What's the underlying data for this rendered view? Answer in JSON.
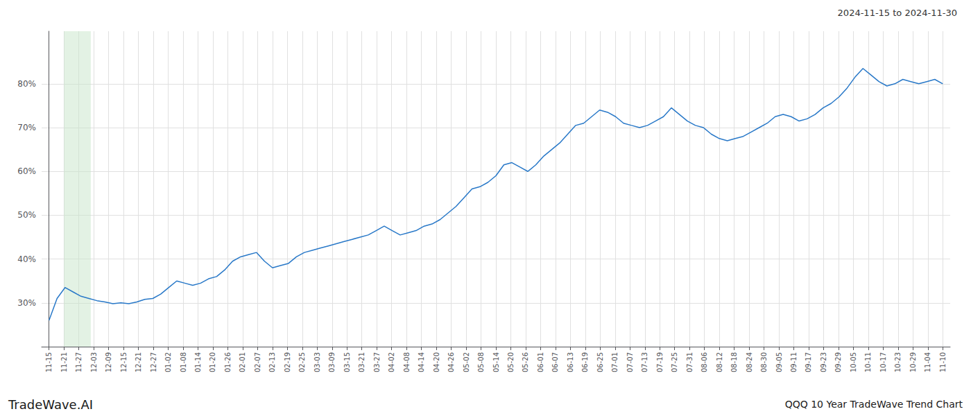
{
  "chart_data": {
    "type": "line",
    "annotations": [
      "2024-11-15 to 2024-11-30",
      "TradeWave.AI",
      "QQQ 10 Year TradeWave Trend Chart"
    ],
    "color": "#2878C8",
    "grid": true,
    "shaded_x": [
      1,
      2.8
    ],
    "shaded_color": "#c8e6c9",
    "xlim": [
      -0.5,
      60.5
    ],
    "xticks": [
      {
        "value": 0,
        "label": "11-15"
      },
      {
        "value": 1,
        "label": "11-21"
      },
      {
        "value": 2,
        "label": "11-27"
      },
      {
        "value": 3,
        "label": "12-03"
      },
      {
        "value": 4,
        "label": "12-09"
      },
      {
        "value": 5,
        "label": "12-15"
      },
      {
        "value": 6,
        "label": "12-21"
      },
      {
        "value": 7,
        "label": "12-27"
      },
      {
        "value": 8,
        "label": "01-02"
      },
      {
        "value": 9,
        "label": "01-08"
      },
      {
        "value": 10,
        "label": "01-14"
      },
      {
        "value": 11,
        "label": "01-20"
      },
      {
        "value": 12,
        "label": "01-26"
      },
      {
        "value": 13,
        "label": "02-01"
      },
      {
        "value": 14,
        "label": "02-07"
      },
      {
        "value": 15,
        "label": "02-13"
      },
      {
        "value": 16,
        "label": "02-19"
      },
      {
        "value": 17,
        "label": "02-25"
      },
      {
        "value": 18,
        "label": "03-03"
      },
      {
        "value": 19,
        "label": "03-09"
      },
      {
        "value": 20,
        "label": "03-15"
      },
      {
        "value": 21,
        "label": "03-21"
      },
      {
        "value": 22,
        "label": "03-27"
      },
      {
        "value": 23,
        "label": "04-02"
      },
      {
        "value": 24,
        "label": "04-08"
      },
      {
        "value": 25,
        "label": "04-14"
      },
      {
        "value": 26,
        "label": "04-20"
      },
      {
        "value": 27,
        "label": "04-26"
      },
      {
        "value": 28,
        "label": "05-02"
      },
      {
        "value": 29,
        "label": "05-08"
      },
      {
        "value": 30,
        "label": "05-14"
      },
      {
        "value": 31,
        "label": "05-20"
      },
      {
        "value": 32,
        "label": "05-26"
      },
      {
        "value": 33,
        "label": "06-01"
      },
      {
        "value": 34,
        "label": "06-07"
      },
      {
        "value": 35,
        "label": "06-13"
      },
      {
        "value": 36,
        "label": "06-19"
      },
      {
        "value": 37,
        "label": "06-25"
      },
      {
        "value": 38,
        "label": "07-01"
      },
      {
        "value": 39,
        "label": "07-07"
      },
      {
        "value": 40,
        "label": "07-13"
      },
      {
        "value": 41,
        "label": "07-19"
      },
      {
        "value": 42,
        "label": "07-25"
      },
      {
        "value": 43,
        "label": "07-31"
      },
      {
        "value": 44,
        "label": "08-06"
      },
      {
        "value": 45,
        "label": "08-12"
      },
      {
        "value": 46,
        "label": "08-18"
      },
      {
        "value": 47,
        "label": "08-24"
      },
      {
        "value": 48,
        "label": "08-30"
      },
      {
        "value": 49,
        "label": "09-05"
      },
      {
        "value": 50,
        "label": "09-11"
      },
      {
        "value": 51,
        "label": "09-17"
      },
      {
        "value": 52,
        "label": "09-23"
      },
      {
        "value": 53,
        "label": "09-29"
      },
      {
        "value": 54,
        "label": "10-05"
      },
      {
        "value": 55,
        "label": "10-11"
      },
      {
        "value": 56,
        "label": "10-17"
      },
      {
        "value": 57,
        "label": "10-23"
      },
      {
        "value": 58,
        "label": "10-29"
      },
      {
        "value": 59,
        "label": "11-04"
      },
      {
        "value": 60,
        "label": "11-10"
      }
    ],
    "ylim": [
      20,
      92
    ],
    "yticks": [
      {
        "value": 30,
        "label": "30%"
      },
      {
        "value": 40,
        "label": "40%"
      },
      {
        "value": 50,
        "label": "50%"
      },
      {
        "value": 60,
        "label": "60%"
      },
      {
        "value": 70,
        "label": "70%"
      },
      {
        "value": 80,
        "label": "80%"
      }
    ],
    "x": [
      0,
      0.5357,
      1.0714,
      1.6071,
      2.1429,
      2.6786,
      3.2143,
      3.75,
      4.2857,
      4.8214,
      5.3571,
      5.8929,
      6.4286,
      6.9643,
      7.5,
      8.0357,
      8.5714,
      9.1071,
      9.6429,
      10.1786,
      10.7143,
      11.25,
      11.7857,
      12.3214,
      12.8571,
      13.3929,
      13.9286,
      14.4643,
      15,
      15.5357,
      16.0714,
      16.6071,
      17.1429,
      17.6786,
      18.2143,
      18.75,
      19.2857,
      19.8214,
      20.3571,
      20.8929,
      21.4286,
      21.9643,
      22.5,
      23.0357,
      23.5714,
      24.1071,
      24.6429,
      25.1786,
      25.7143,
      26.25,
      26.7857,
      27.3214,
      27.8571,
      28.3929,
      28.9286,
      29.4643,
      30,
      30.5357,
      31.0714,
      31.6071,
      32.1429,
      32.6786,
      33.2143,
      33.75,
      34.2857,
      34.8214,
      35.3571,
      35.8929,
      36.4286,
      36.9643,
      37.5,
      38.0357,
      38.5714,
      39.1071,
      39.6429,
      40.1786,
      40.7143,
      41.25,
      41.7857,
      42.3214,
      42.8571,
      43.3929,
      43.9286,
      44.4643,
      45,
      45.5357,
      46.0714,
      46.6071,
      47.1429,
      47.6786,
      48.2143,
      48.75,
      49.2857,
      49.8214,
      50.3571,
      50.8929,
      51.4286,
      51.9643,
      52.5,
      53.0357,
      53.5714,
      54.1071,
      54.6429,
      55.1786,
      55.7143,
      56.25,
      56.7857,
      57.3214,
      57.8571,
      58.3929,
      58.9286,
      59.4643,
      60
    ],
    "values": [
      26.0,
      31.0,
      33.5,
      32.5,
      31.5,
      31.0,
      30.5,
      30.2,
      29.8,
      30.0,
      29.8,
      30.2,
      30.8,
      31.0,
      32.0,
      33.5,
      35.0,
      34.5,
      34.0,
      34.5,
      35.5,
      36.0,
      37.5,
      39.5,
      40.5,
      41.0,
      41.5,
      39.5,
      38.0,
      38.5,
      39.0,
      40.5,
      41.5,
      42.0,
      42.5,
      43.0,
      43.5,
      44.0,
      44.5,
      45.0,
      45.5,
      46.5,
      47.5,
      46.5,
      45.5,
      46.0,
      46.5,
      47.5,
      48.0,
      49.0,
      50.5,
      52.0,
      54.0,
      56.0,
      56.5,
      57.5,
      59.0,
      61.5,
      62.0,
      61.0,
      60.0,
      61.5,
      63.5,
      65.0,
      66.5,
      68.5,
      70.5,
      71.0,
      72.5,
      74.0,
      73.5,
      72.5,
      71.0,
      70.5,
      70.0,
      70.5,
      71.5,
      72.5,
      74.5,
      73.0,
      71.5,
      70.5,
      70.0,
      68.5,
      67.5,
      67.0,
      67.5,
      68.0,
      69.0,
      70.0,
      71.0,
      72.5,
      73.0,
      72.5,
      71.5,
      72.0,
      73.0,
      74.5,
      75.5,
      77.0,
      79.0,
      81.5,
      83.5,
      82.0,
      80.5,
      79.5,
      80.0,
      81.0,
      80.5,
      80.0,
      80.5,
      81.0,
      80.0
    ]
  }
}
